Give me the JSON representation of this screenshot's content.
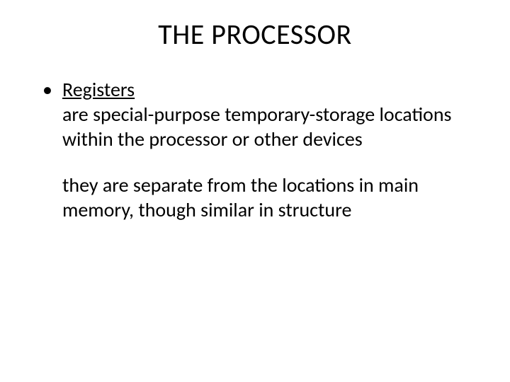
{
  "slide": {
    "title": "THE PROCESSOR",
    "bullet": {
      "term": "Registers",
      "paragraph1": "are special-purpose temporary-storage locations within the processor or other devices",
      "paragraph2": "they are separate from the locations in main memory, though similar in structure"
    }
  },
  "style": {
    "background_color": "#ffffff",
    "text_color": "#000000",
    "title_fontsize": 40,
    "body_fontsize": 28,
    "font_family": "Calibri"
  }
}
